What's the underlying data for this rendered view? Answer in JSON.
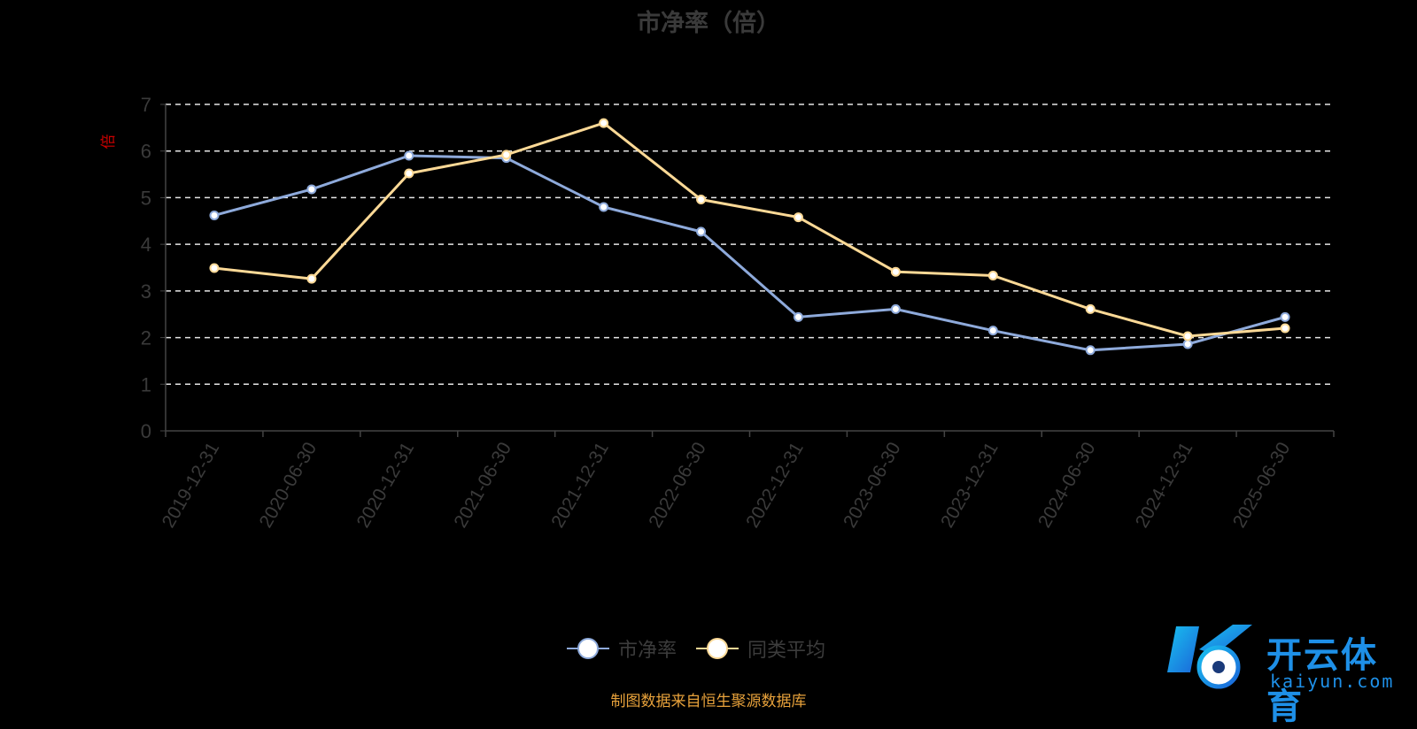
{
  "chart_data": {
    "type": "line",
    "title": "市净率（倍）",
    "ylabel": "倍",
    "ylim": [
      0,
      7
    ],
    "yticks": [
      0,
      1,
      2,
      3,
      4,
      5,
      6,
      7
    ],
    "grid": true,
    "legend_position": "bottom",
    "categories": [
      "2019-12-31",
      "2020-06-30",
      "2020-12-31",
      "2021-06-30",
      "2021-12-31",
      "2022-06-30",
      "2022-12-31",
      "2023-06-30",
      "2023-12-31",
      "2024-06-30",
      "2024-12-31",
      "2025-06-30"
    ],
    "series": [
      {
        "name": "市净率",
        "color": "#8eaadb",
        "values": [
          4.62,
          5.18,
          5.9,
          5.85,
          4.8,
          4.27,
          2.44,
          2.61,
          2.15,
          1.73,
          1.86,
          2.44
        ]
      },
      {
        "name": "同类平均",
        "color": "#fcd996",
        "values": [
          3.49,
          3.26,
          5.52,
          5.92,
          6.6,
          4.96,
          4.58,
          3.41,
          3.33,
          2.61,
          2.03,
          2.2
        ]
      }
    ]
  },
  "legend": {
    "series1": "市净率",
    "series2": "同类平均"
  },
  "source_note": "制图数据来自恒生聚源数据库",
  "watermark": {
    "brand": "开云体育",
    "url": "kaiyun.com",
    "color": "#1e90e8"
  }
}
